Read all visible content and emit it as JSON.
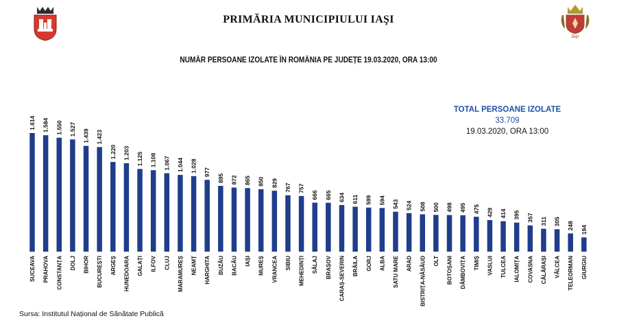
{
  "header": {
    "title": "PRIMĂRIA MUNICIPIULUI IAŞI",
    "left_logo_icon": "iasi-coat-of-arms-icon",
    "right_logo_icon": "iasi-city-crest-icon"
  },
  "total_box": {
    "label": "TOTAL PERSOANE IZOLATE",
    "value": "33.709",
    "date": "19.03.2020, ORA 13:00"
  },
  "source": "Sursa: Institutul Național de Sănătate Publică",
  "colors": {
    "bar": "#1f3d8a",
    "accent": "#1a50a8",
    "logo_red": "#d63a2f"
  },
  "chart_data": {
    "type": "bar",
    "title": "NUMĂR PERSOANE IZOLATE ÎN ROMÂNIA PE JUDEȚE 19.03.2020, ORA 13:00",
    "xlabel": "",
    "ylabel": "",
    "grid": false,
    "legend": "none",
    "ylim": [
      0,
      1614
    ],
    "categories": [
      "SUCEAVA",
      "PRAHOVA",
      "CONSTANȚA",
      "DOLJ",
      "BIHOR",
      "BUCUREȘTI",
      "ARGEȘ",
      "HUNEDOARA",
      "GALAȚI",
      "ILFOV",
      "CLUJ",
      "MARAMUREȘ",
      "NEAMȚ",
      "HARGHITA",
      "BUZĂU",
      "BACĂU",
      "IAȘI",
      "MUREȘ",
      "VRANCEA",
      "SIBIU",
      "MEHEDINȚI",
      "SĂLAJ",
      "BRAȘOV",
      "CARAȘ-SEVERIN",
      "BRĂILA",
      "GORJ",
      "ALBA",
      "SATU MARE",
      "ARAD",
      "BISTRIȚA-NĂSĂUD",
      "OLT",
      "BOTOȘANI",
      "DÂMBOVIȚA",
      "TIMIȘ",
      "VASLUI",
      "TULCEA",
      "IALOMIȚA",
      "COVASNA",
      "CĂLĂRAȘI",
      "VÂLCEA",
      "TELEORMAN",
      "GIURGIU"
    ],
    "values": [
      1614,
      1584,
      1550,
      1527,
      1439,
      1423,
      1220,
      1203,
      1125,
      1108,
      1067,
      1044,
      1028,
      977,
      895,
      872,
      865,
      850,
      829,
      767,
      757,
      666,
      665,
      634,
      611,
      599,
      594,
      543,
      524,
      508,
      500,
      498,
      495,
      475,
      429,
      414,
      395,
      357,
      311,
      305,
      248,
      194
    ],
    "value_labels": [
      "1.614",
      "1.584",
      "1.550",
      "1.527",
      "1.439",
      "1.423",
      "1.220",
      "1.203",
      "1.125",
      "1.108",
      "1.067",
      "1.044",
      "1.028",
      "977",
      "895",
      "872",
      "865",
      "850",
      "829",
      "767",
      "757",
      "666",
      "665",
      "634",
      "611",
      "599",
      "594",
      "543",
      "524",
      "508",
      "500",
      "498",
      "495",
      "475",
      "429",
      "414",
      "395",
      "357",
      "311",
      "305",
      "248",
      "194"
    ]
  }
}
